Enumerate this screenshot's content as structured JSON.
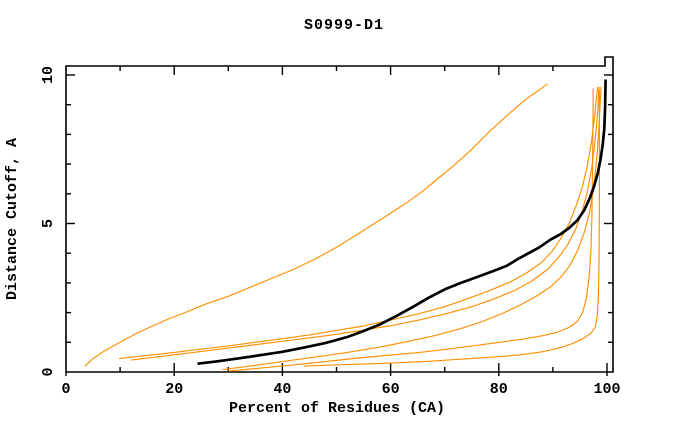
{
  "title": "S0999-D1",
  "chart_data": {
    "type": "line",
    "title": "S0999-D1",
    "xlabel": "Percent of Residues (CA)",
    "ylabel": "Distance Cutoff, A",
    "xlim": [
      0,
      100
    ],
    "ylim": [
      0,
      10
    ],
    "xticks_major": [
      0,
      20,
      40,
      60,
      80,
      100
    ],
    "xticks_minor": [
      10,
      30,
      50,
      70,
      90
    ],
    "yticks_major": [
      0,
      5,
      10
    ],
    "yticks_minor": [
      1,
      2,
      3,
      4,
      6,
      7,
      8,
      9
    ],
    "xtick_labels": [
      "0",
      "20",
      "40",
      "60",
      "80",
      "100"
    ],
    "ytick_labels": [
      "0",
      "5",
      "10"
    ],
    "grid": false,
    "legend": "none",
    "colors": {
      "highlight_curve": "#000000",
      "comparison_curve": "#ff8f00",
      "frame": "#000000"
    },
    "series": [
      {
        "name": "orange-model-1-worst",
        "role": "normal",
        "points": [
          [
            3.5,
            0.2
          ],
          [
            5,
            0.45
          ],
          [
            7,
            0.7
          ],
          [
            10,
            1.0
          ],
          [
            13,
            1.3
          ],
          [
            16,
            1.55
          ],
          [
            18.5,
            1.75
          ],
          [
            22,
            2.0
          ],
          [
            26,
            2.3
          ],
          [
            30,
            2.55
          ],
          [
            34,
            2.85
          ],
          [
            38,
            3.15
          ],
          [
            42,
            3.45
          ],
          [
            46,
            3.8
          ],
          [
            50,
            4.2
          ],
          [
            54,
            4.65
          ],
          [
            57,
            5.0
          ],
          [
            60,
            5.35
          ],
          [
            63,
            5.7
          ],
          [
            66,
            6.1
          ],
          [
            69,
            6.55
          ],
          [
            72,
            7.0
          ],
          [
            75,
            7.5
          ],
          [
            78,
            8.05
          ],
          [
            81,
            8.55
          ],
          [
            83.5,
            8.95
          ],
          [
            85.5,
            9.25
          ],
          [
            87.5,
            9.5
          ],
          [
            89,
            9.7
          ]
        ]
      },
      {
        "name": "orange-model-2",
        "role": "normal",
        "points": [
          [
            9.8,
            0.45
          ],
          [
            15,
            0.56
          ],
          [
            20,
            0.66
          ],
          [
            25,
            0.77
          ],
          [
            30,
            0.88
          ],
          [
            35,
            1.0
          ],
          [
            40,
            1.12
          ],
          [
            45,
            1.25
          ],
          [
            50,
            1.4
          ],
          [
            55,
            1.55
          ],
          [
            60,
            1.75
          ],
          [
            65,
            1.95
          ],
          [
            70,
            2.2
          ],
          [
            74,
            2.45
          ],
          [
            78,
            2.72
          ],
          [
            82,
            3.02
          ],
          [
            85,
            3.32
          ],
          [
            88,
            3.7
          ],
          [
            90,
            4.1
          ],
          [
            91.5,
            4.5
          ],
          [
            93,
            5.0
          ],
          [
            94.3,
            5.6
          ],
          [
            95.4,
            6.2
          ],
          [
            96.3,
            6.9
          ],
          [
            97.1,
            7.7
          ],
          [
            97.7,
            8.6
          ],
          [
            98.1,
            9.3
          ],
          [
            98.3,
            9.6
          ]
        ]
      },
      {
        "name": "orange-model-3",
        "role": "normal",
        "points": [
          [
            12,
            0.4
          ],
          [
            20,
            0.58
          ],
          [
            28,
            0.76
          ],
          [
            35,
            0.92
          ],
          [
            42,
            1.08
          ],
          [
            48,
            1.22
          ],
          [
            54,
            1.38
          ],
          [
            60,
            1.56
          ],
          [
            65,
            1.74
          ],
          [
            70,
            1.95
          ],
          [
            75,
            2.2
          ],
          [
            79,
            2.45
          ],
          [
            83,
            2.75
          ],
          [
            86,
            3.05
          ],
          [
            89,
            3.45
          ],
          [
            91,
            3.85
          ],
          [
            92.8,
            4.3
          ],
          [
            94.2,
            4.8
          ],
          [
            95.4,
            5.4
          ],
          [
            96.4,
            6.1
          ],
          [
            97.2,
            6.9
          ],
          [
            97.8,
            7.8
          ],
          [
            98.3,
            8.8
          ],
          [
            98.5,
            9.6
          ]
        ]
      },
      {
        "name": "orange-model-4",
        "role": "normal",
        "points": [
          [
            29,
            0.08
          ],
          [
            34,
            0.2
          ],
          [
            40,
            0.35
          ],
          [
            46,
            0.5
          ],
          [
            52,
            0.66
          ],
          [
            58,
            0.84
          ],
          [
            63,
            1.02
          ],
          [
            68,
            1.22
          ],
          [
            73,
            1.46
          ],
          [
            77,
            1.7
          ],
          [
            81,
            2.0
          ],
          [
            84,
            2.26
          ],
          [
            87,
            2.56
          ],
          [
            89.5,
            2.86
          ],
          [
            91.5,
            3.2
          ],
          [
            93.2,
            3.6
          ],
          [
            94.6,
            4.1
          ],
          [
            95.8,
            4.7
          ],
          [
            96.8,
            5.4
          ],
          [
            97.6,
            6.3
          ],
          [
            98.2,
            7.4
          ],
          [
            98.6,
            8.5
          ],
          [
            98.8,
            9.3
          ],
          [
            98.9,
            9.6
          ]
        ]
      },
      {
        "name": "orange-model-5",
        "role": "normal",
        "points": [
          [
            30,
            0.03
          ],
          [
            36,
            0.13
          ],
          [
            42,
            0.24
          ],
          [
            48,
            0.35
          ],
          [
            54,
            0.47
          ],
          [
            60,
            0.57
          ],
          [
            66,
            0.67
          ],
          [
            71,
            0.78
          ],
          [
            76,
            0.9
          ],
          [
            81,
            1.02
          ],
          [
            85,
            1.12
          ],
          [
            88,
            1.22
          ],
          [
            91,
            1.35
          ],
          [
            93,
            1.5
          ],
          [
            94.5,
            1.7
          ],
          [
            95.5,
            2.0
          ],
          [
            96.2,
            2.5
          ],
          [
            96.7,
            3.2
          ],
          [
            97,
            4.0
          ],
          [
            97.2,
            5.2
          ],
          [
            97.3,
            6.5
          ],
          [
            97.4,
            8.0
          ],
          [
            97.45,
            9.55
          ]
        ]
      },
      {
        "name": "orange-model-6-best",
        "role": "normal",
        "points": [
          [
            44,
            0.2
          ],
          [
            52,
            0.25
          ],
          [
            60,
            0.3
          ],
          [
            67,
            0.36
          ],
          [
            73,
            0.43
          ],
          [
            79,
            0.5
          ],
          [
            84,
            0.58
          ],
          [
            88,
            0.68
          ],
          [
            91,
            0.8
          ],
          [
            93.5,
            0.95
          ],
          [
            95.5,
            1.12
          ],
          [
            97,
            1.3
          ],
          [
            97.8,
            1.5
          ],
          [
            98.2,
            1.9
          ],
          [
            98.4,
            2.5
          ],
          [
            98.5,
            3.4
          ],
          [
            98.55,
            4.6
          ],
          [
            98.6,
            6.0
          ],
          [
            98.6,
            7.5
          ],
          [
            98.6,
            9.5
          ]
        ]
      },
      {
        "name": "black-selected-model",
        "role": "highlight",
        "points": [
          [
            24.3,
            0.28
          ],
          [
            28,
            0.36
          ],
          [
            32,
            0.46
          ],
          [
            36,
            0.57
          ],
          [
            40,
            0.68
          ],
          [
            44,
            0.82
          ],
          [
            48,
            0.98
          ],
          [
            52,
            1.18
          ],
          [
            55,
            1.38
          ],
          [
            58,
            1.6
          ],
          [
            61,
            1.88
          ],
          [
            64,
            2.18
          ],
          [
            67,
            2.5
          ],
          [
            70,
            2.78
          ],
          [
            73,
            3.0
          ],
          [
            76,
            3.2
          ],
          [
            79,
            3.4
          ],
          [
            81.5,
            3.58
          ],
          [
            83.5,
            3.8
          ],
          [
            85.5,
            4.0
          ],
          [
            87.5,
            4.2
          ],
          [
            89.5,
            4.45
          ],
          [
            91.5,
            4.65
          ],
          [
            93,
            4.85
          ],
          [
            94.5,
            5.1
          ],
          [
            95.8,
            5.45
          ],
          [
            96.8,
            5.85
          ],
          [
            97.6,
            6.25
          ],
          [
            98.3,
            6.7
          ],
          [
            98.8,
            7.15
          ],
          [
            99.2,
            7.65
          ],
          [
            99.5,
            8.2
          ],
          [
            99.65,
            8.9
          ],
          [
            99.7,
            9.5
          ],
          [
            99.75,
            9.85
          ]
        ]
      }
    ]
  }
}
